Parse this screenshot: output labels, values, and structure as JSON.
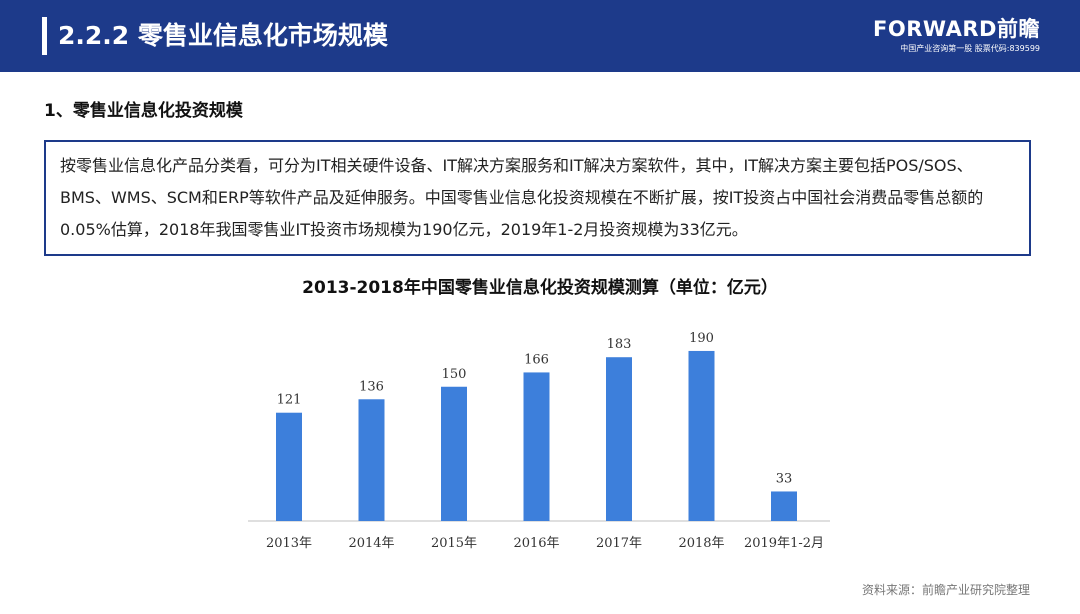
{
  "header": {
    "title": "2.2.2 零售业信息化市场规模",
    "brand_name": "FORWARD前瞻",
    "brand_sub": "中国产业咨询第一股 股票代码:839599"
  },
  "section": {
    "heading": "1、零售业信息化投资规模",
    "description": "按零售业信息化产品分类看，可分为IT相关硬件设备、IT解决方案服务和IT解决方案软件，其中，IT解决方案主要包括POS/SOS、BMS、WMS、SCM和ERP等软件产品及延伸服务。中国零售业信息化投资规模在不断扩展，按IT投资占中国社会消费品零售总额的0.05%估算，2018年我国零售业IT投资市场规模为190亿元，2019年1-2月投资规模为33亿元。"
  },
  "chart_data": {
    "type": "bar",
    "title": "2013-2018年中国零售业信息化投资规模测算（单位：亿元）",
    "categories": [
      "2013年",
      "2014年",
      "2015年",
      "2016年",
      "2017年",
      "2018年",
      "2019年1-2月"
    ],
    "values": [
      121,
      136,
      150,
      166,
      183,
      190,
      33
    ],
    "xlabel": "",
    "ylabel": "",
    "ylim": [
      0,
      200
    ],
    "grid": false,
    "legend": "none",
    "bar_color": "#3d7fdb"
  },
  "footer": {
    "source": "资料来源：前瞻产业研究院整理"
  },
  "colors": {
    "header_bg": "#1d3a8a",
    "bar": "#3d7fdb"
  }
}
